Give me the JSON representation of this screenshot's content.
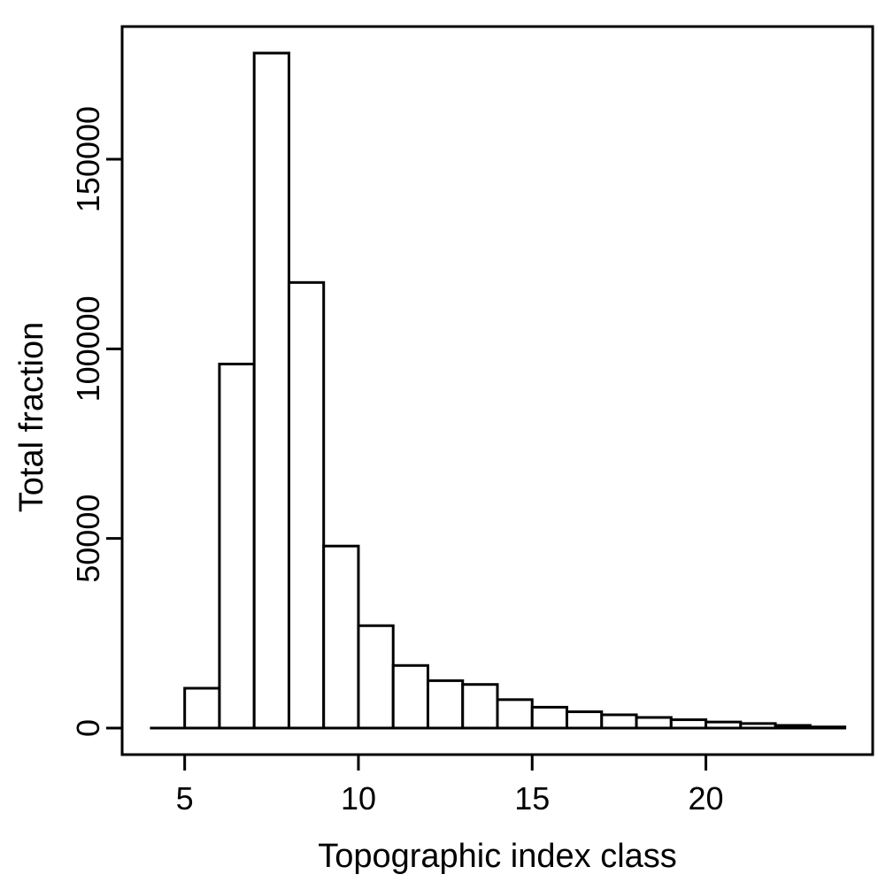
{
  "chart_data": {
    "type": "bar",
    "xlabel": "Topographic index class",
    "ylabel": "Total fraction",
    "xlim": [
      3.2,
      24.8
    ],
    "ylim": [
      -7000,
      185000
    ],
    "x_ticks": [
      5,
      10,
      15,
      20
    ],
    "y_ticks": [
      0,
      50000,
      100000,
      150000
    ],
    "grid": false,
    "bins": [
      {
        "x0": 4,
        "x1": 5,
        "value": 0
      },
      {
        "x0": 5,
        "x1": 6,
        "value": 10500
      },
      {
        "x0": 6,
        "x1": 7,
        "value": 96000
      },
      {
        "x0": 7,
        "x1": 8,
        "value": 178000
      },
      {
        "x0": 8,
        "x1": 9,
        "value": 117500
      },
      {
        "x0": 9,
        "x1": 10,
        "value": 48000
      },
      {
        "x0": 10,
        "x1": 11,
        "value": 27000
      },
      {
        "x0": 11,
        "x1": 12,
        "value": 16500
      },
      {
        "x0": 12,
        "x1": 13,
        "value": 12500
      },
      {
        "x0": 13,
        "x1": 14,
        "value": 11500
      },
      {
        "x0": 14,
        "x1": 15,
        "value": 7500
      },
      {
        "x0": 15,
        "x1": 16,
        "value": 5500
      },
      {
        "x0": 16,
        "x1": 17,
        "value": 4300
      },
      {
        "x0": 17,
        "x1": 18,
        "value": 3500
      },
      {
        "x0": 18,
        "x1": 19,
        "value": 2800
      },
      {
        "x0": 19,
        "x1": 20,
        "value": 2200
      },
      {
        "x0": 20,
        "x1": 21,
        "value": 1600
      },
      {
        "x0": 21,
        "x1": 22,
        "value": 1200
      },
      {
        "x0": 22,
        "x1": 23,
        "value": 700
      },
      {
        "x0": 23,
        "x1": 24,
        "value": 300
      }
    ]
  }
}
